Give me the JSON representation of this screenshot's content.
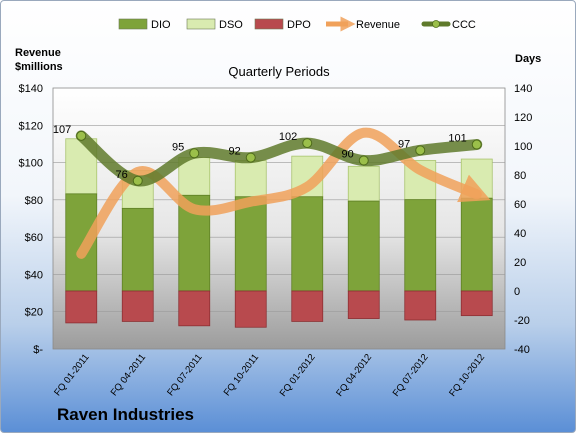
{
  "company": "Raven Industries",
  "chart_data": {
    "type": "bar",
    "title": "Quarterly Periods",
    "ylabel_left": "Revenue\n$millions",
    "ylabel_right": "Days",
    "categories": [
      "FQ 01-2011",
      "FQ 04-2011",
      "FQ 07-2011",
      "FQ 10-2011",
      "FQ 01-2012",
      "FQ 04-2012",
      "FQ 07-2012",
      "FQ 10-2012"
    ],
    "left_axis": {
      "min": 0,
      "max": 140,
      "step": 20,
      "ticks": [
        "$-",
        "$20",
        "$40",
        "$60",
        "$80",
        "$100",
        "$120",
        "$140"
      ]
    },
    "right_axis": {
      "min": -40,
      "max": 140,
      "step": 20
    },
    "legend": {
      "position": "top",
      "items": [
        "DIO",
        "DSO",
        "DPO",
        "Revenue",
        "CCC"
      ]
    },
    "series": [
      {
        "name": "DIO",
        "axis": "right",
        "color": "#7ea33a",
        "values": [
          67,
          57,
          66,
          65,
          65,
          62,
          63,
          64
        ]
      },
      {
        "name": "DSO",
        "axis": "right",
        "color": "#d9ebb0",
        "values": [
          38,
          26,
          26,
          25,
          28,
          24,
          27,
          27
        ]
      },
      {
        "name": "DPO",
        "axis": "right",
        "color": "#b84a4e",
        "values": [
          -22,
          -21,
          -24,
          -25,
          -21,
          -19,
          -20,
          -17
        ]
      },
      {
        "name": "Revenue",
        "axis": "left",
        "color": "#f0a15a",
        "values": [
          51,
          95,
          75,
          79,
          87,
          116,
          96,
          83
        ]
      },
      {
        "name": "CCC",
        "axis": "right",
        "color": "#5f7a2b",
        "values": [
          107,
          76,
          95,
          92,
          102,
          90,
          97,
          101
        ]
      }
    ]
  }
}
